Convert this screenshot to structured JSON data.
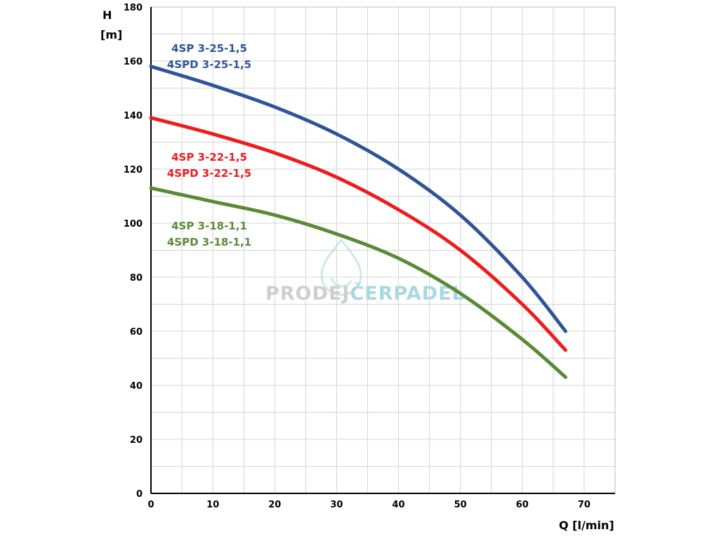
{
  "chart_data": {
    "type": "line",
    "xlabel": "Q [l/min]",
    "ylabel_line1": "H",
    "ylabel_line2": "[m]",
    "xlim": [
      0,
      75
    ],
    "ylim": [
      0,
      180
    ],
    "x_ticks": [
      0,
      10,
      20,
      30,
      40,
      50,
      60,
      70
    ],
    "y_ticks": [
      0,
      20,
      40,
      60,
      80,
      100,
      120,
      140,
      160,
      180
    ],
    "grid": true,
    "series": [
      {
        "label_line1": "4SP 3-25-1,5",
        "label_line2": "4SPD 3-25-1,5",
        "color": "#2e5597",
        "x": [
          0,
          10,
          20,
          30,
          40,
          50,
          60,
          67
        ],
        "y": [
          158,
          151,
          143,
          133,
          120,
          103,
          80,
          60
        ]
      },
      {
        "label_line1": "4SP 3-22-1,5",
        "label_line2": "4SPD 3-22-1,5",
        "color": "#ef1c1c",
        "x": [
          0,
          10,
          20,
          30,
          40,
          50,
          60,
          67
        ],
        "y": [
          139,
          133,
          126,
          117,
          105,
          90,
          70,
          53
        ]
      },
      {
        "label_line1": "4SP 3-18-1,1",
        "label_line2": "4SPD 3-18-1,1",
        "color": "#5b8a35",
        "x": [
          0,
          10,
          20,
          30,
          40,
          50,
          60,
          67
        ],
        "y": [
          113,
          108,
          103,
          96,
          87,
          74,
          57,
          43
        ]
      }
    ]
  },
  "watermark": {
    "text_part1": "PRODEJ",
    "text_part2": "ČERPADEL",
    "logo_icon": "water-drop-icon"
  }
}
